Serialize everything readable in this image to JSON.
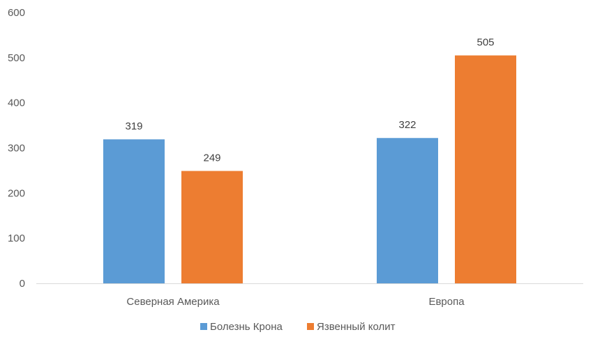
{
  "chart_data": {
    "type": "bar",
    "categories": [
      "Северная Америка",
      "Европа"
    ],
    "series": [
      {
        "name": "Болезнь Крона",
        "values": [
          319,
          322
        ],
        "color": "#5b9bd5"
      },
      {
        "name": "Язвенный колит",
        "values": [
          249,
          505
        ],
        "color": "#ed7d31"
      }
    ],
    "ylim": [
      0,
      600
    ],
    "yticks": [
      0,
      100,
      200,
      300,
      400,
      500,
      600
    ],
    "grid": false,
    "legend_position": "bottom",
    "data_labels": true
  }
}
